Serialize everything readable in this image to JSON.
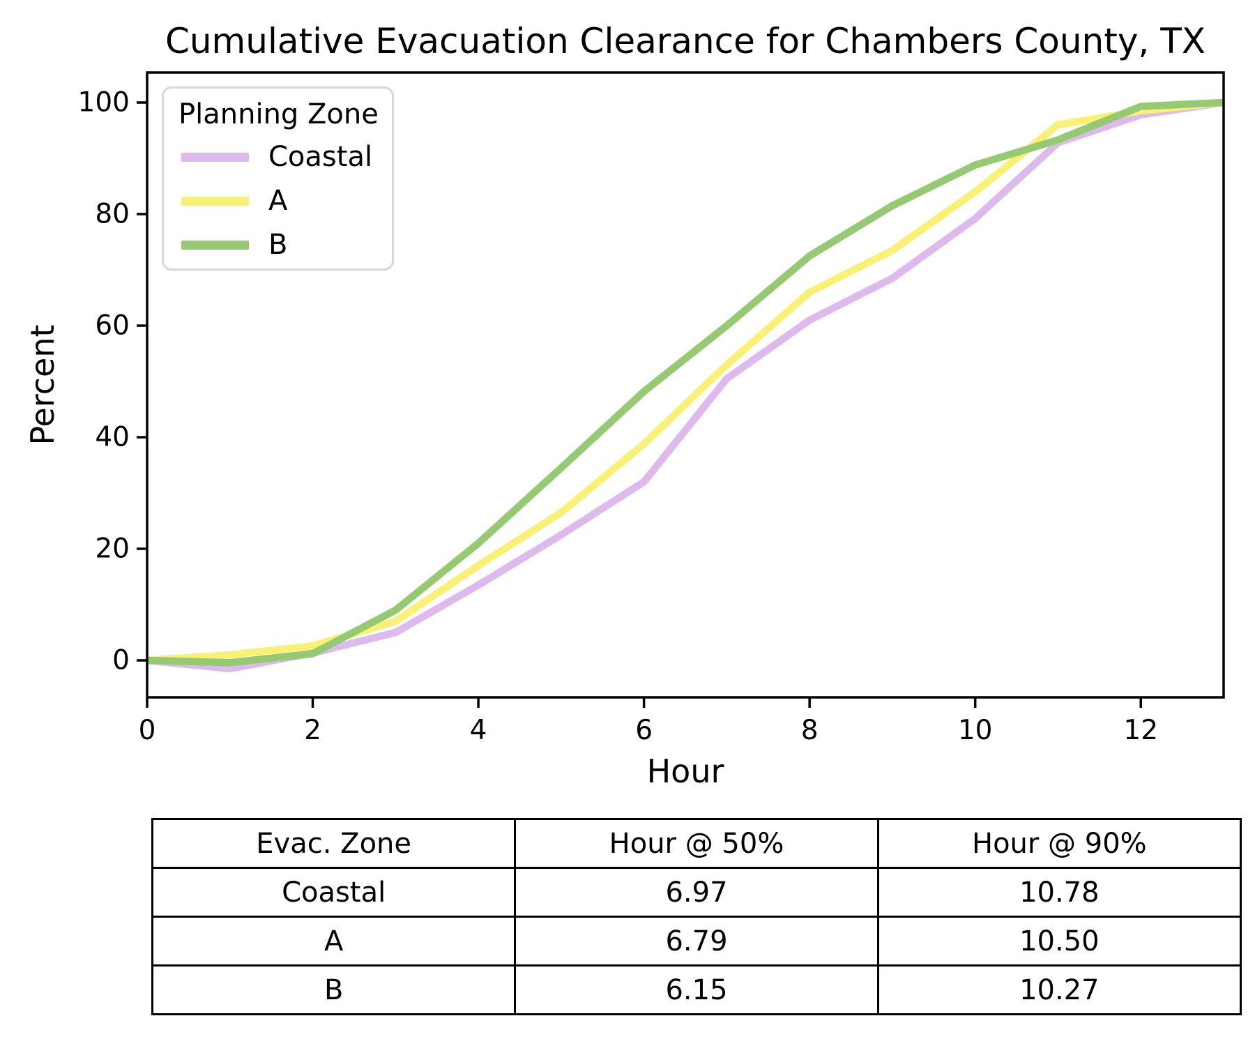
{
  "chart_data": {
    "type": "line",
    "title": "Cumulative Evacuation Clearance for Chambers County, TX",
    "xlabel": "Hour",
    "ylabel": "Percent",
    "xlim": [
      0,
      13
    ],
    "ylim": [
      -6.6,
      105.4
    ],
    "xticks": [
      0,
      2,
      4,
      6,
      8,
      10,
      12
    ],
    "yticks": [
      0,
      20,
      40,
      60,
      80,
      100
    ],
    "grid": false,
    "legend": {
      "title": "Planning Zone",
      "position": "upper left"
    },
    "x": [
      0,
      1,
      2,
      3,
      4,
      5,
      6,
      7,
      8,
      9,
      10,
      11,
      12,
      13
    ],
    "series": [
      {
        "name": "Coastal",
        "color": "#deb9ee",
        "values": [
          0,
          -1.5,
          1.3,
          5,
          13.5,
          22.5,
          32,
          50.5,
          61,
          68.5,
          79.2,
          92.8,
          97.8,
          100
        ]
      },
      {
        "name": "A",
        "color": "#f9f175",
        "values": [
          0,
          1,
          2.6,
          7,
          17,
          26.5,
          38.8,
          53,
          66,
          73.5,
          84,
          96,
          98.5,
          100
        ]
      },
      {
        "name": "B",
        "color": "#95ca73",
        "values": [
          0,
          -0.4,
          1.2,
          9,
          21,
          34.5,
          48.2,
          60,
          72.5,
          81.5,
          88.8,
          93.3,
          99.3,
          100
        ]
      }
    ]
  },
  "table": {
    "headers": [
      "Evac. Zone",
      "Hour @ 50%",
      "Hour @ 90%"
    ],
    "rows": [
      [
        "Coastal",
        "6.97",
        "10.78"
      ],
      [
        "A",
        "6.79",
        "10.50"
      ],
      [
        "B",
        "6.15",
        "10.27"
      ]
    ]
  }
}
